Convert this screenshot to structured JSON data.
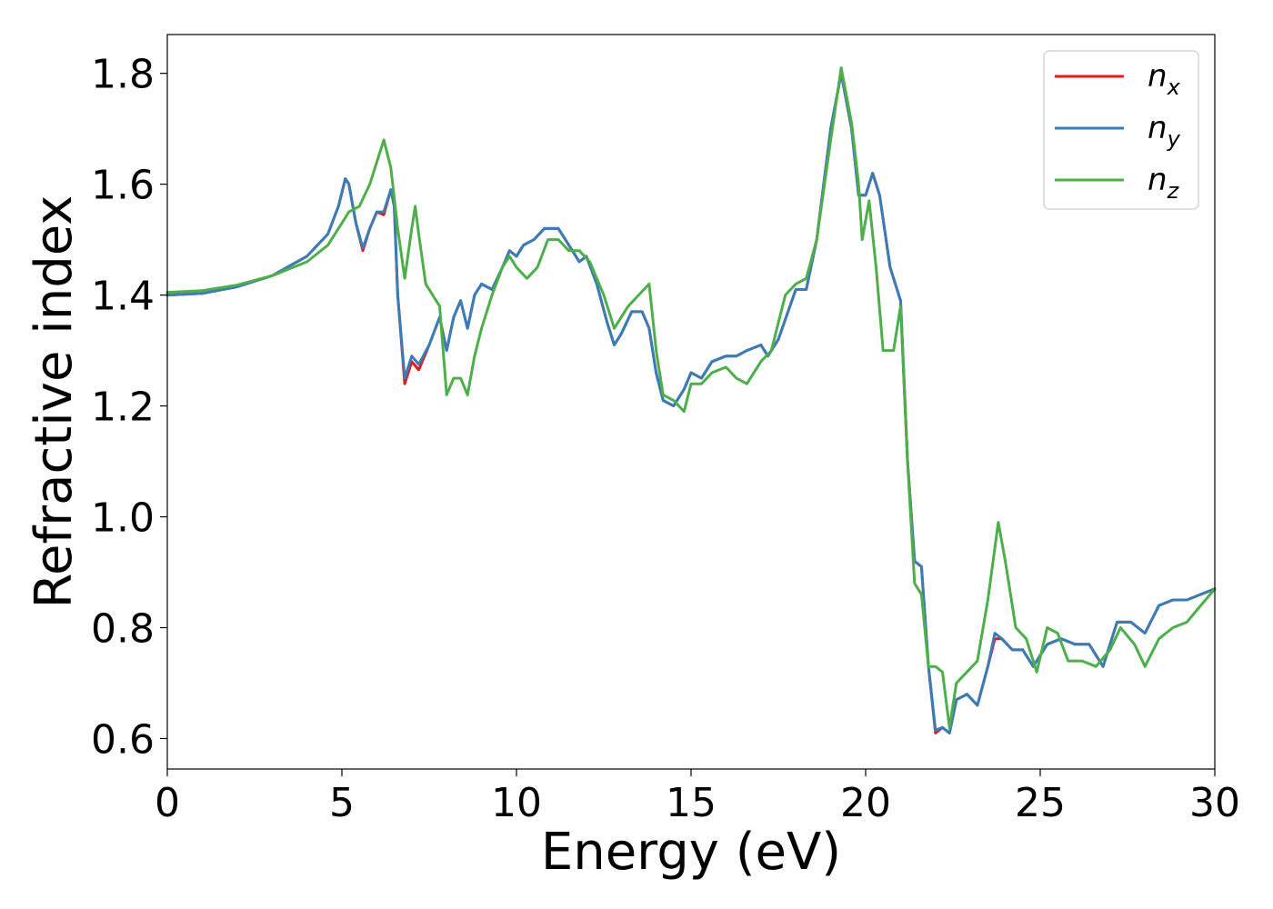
{
  "chart_data": {
    "type": "line",
    "title": "",
    "xlabel": "Energy (eV)",
    "ylabel": "Refractive index",
    "xlim": [
      0,
      30
    ],
    "ylim": [
      0.545,
      1.87
    ],
    "xticks": [
      0,
      5,
      10,
      15,
      20,
      25,
      30
    ],
    "yticks": [
      0.6,
      0.8,
      1.0,
      1.2,
      1.4,
      1.6,
      1.8
    ],
    "xtick_labels": [
      "0",
      "5",
      "10",
      "15",
      "20",
      "25",
      "30"
    ],
    "ytick_labels": [
      "0.6",
      "0.8",
      "1.0",
      "1.2",
      "1.4",
      "1.6",
      "1.8"
    ],
    "grid": false,
    "legend_position": "top-right",
    "series": [
      {
        "name": "n_x",
        "base": "n",
        "sub": "x",
        "color": "#e41a1c",
        "points": [
          [
            0,
            1.4
          ],
          [
            1,
            1.403
          ],
          [
            2,
            1.415
          ],
          [
            3,
            1.435
          ],
          [
            4,
            1.47
          ],
          [
            4.6,
            1.51
          ],
          [
            4.9,
            1.56
          ],
          [
            5.1,
            1.61
          ],
          [
            5.2,
            1.6
          ],
          [
            5.4,
            1.53
          ],
          [
            5.6,
            1.48
          ],
          [
            5.8,
            1.52
          ],
          [
            6.0,
            1.55
          ],
          [
            6.2,
            1.545
          ],
          [
            6.4,
            1.59
          ],
          [
            6.5,
            1.56
          ],
          [
            6.6,
            1.4
          ],
          [
            6.8,
            1.24
          ],
          [
            7.0,
            1.28
          ],
          [
            7.2,
            1.265
          ],
          [
            7.5,
            1.31
          ],
          [
            7.8,
            1.36
          ],
          [
            8.0,
            1.3
          ],
          [
            8.2,
            1.36
          ],
          [
            8.4,
            1.39
          ],
          [
            8.6,
            1.34
          ],
          [
            8.8,
            1.4
          ],
          [
            9.0,
            1.42
          ],
          [
            9.3,
            1.41
          ],
          [
            9.6,
            1.45
          ],
          [
            9.8,
            1.48
          ],
          [
            10.0,
            1.47
          ],
          [
            10.2,
            1.49
          ],
          [
            10.5,
            1.5
          ],
          [
            10.8,
            1.52
          ],
          [
            11.0,
            1.52
          ],
          [
            11.2,
            1.52
          ],
          [
            11.5,
            1.49
          ],
          [
            11.8,
            1.46
          ],
          [
            12.0,
            1.47
          ],
          [
            12.3,
            1.42
          ],
          [
            12.6,
            1.35
          ],
          [
            12.8,
            1.31
          ],
          [
            13.0,
            1.33
          ],
          [
            13.3,
            1.37
          ],
          [
            13.6,
            1.37
          ],
          [
            13.8,
            1.34
          ],
          [
            14.0,
            1.26
          ],
          [
            14.2,
            1.21
          ],
          [
            14.5,
            1.2
          ],
          [
            14.8,
            1.23
          ],
          [
            15.0,
            1.26
          ],
          [
            15.3,
            1.25
          ],
          [
            15.6,
            1.28
          ],
          [
            16.0,
            1.29
          ],
          [
            16.3,
            1.29
          ],
          [
            16.6,
            1.3
          ],
          [
            17.0,
            1.31
          ],
          [
            17.2,
            1.29
          ],
          [
            17.5,
            1.32
          ],
          [
            18.0,
            1.41
          ],
          [
            18.3,
            1.41
          ],
          [
            18.6,
            1.5
          ],
          [
            19.0,
            1.7
          ],
          [
            19.3,
            1.8
          ],
          [
            19.6,
            1.7
          ],
          [
            19.8,
            1.58
          ],
          [
            20.0,
            1.58
          ],
          [
            20.2,
            1.62
          ],
          [
            20.4,
            1.58
          ],
          [
            20.7,
            1.45
          ],
          [
            21.0,
            1.39
          ],
          [
            21.2,
            1.1
          ],
          [
            21.4,
            0.92
          ],
          [
            21.6,
            0.91
          ],
          [
            21.8,
            0.73
          ],
          [
            22.0,
            0.61
          ],
          [
            22.2,
            0.62
          ],
          [
            22.4,
            0.61
          ],
          [
            22.6,
            0.67
          ],
          [
            22.9,
            0.68
          ],
          [
            23.2,
            0.66
          ],
          [
            23.5,
            0.73
          ],
          [
            23.7,
            0.78
          ],
          [
            23.9,
            0.78
          ],
          [
            24.2,
            0.76
          ],
          [
            24.5,
            0.76
          ],
          [
            24.8,
            0.73
          ],
          [
            25.2,
            0.77
          ],
          [
            25.6,
            0.78
          ],
          [
            26.0,
            0.77
          ],
          [
            26.4,
            0.77
          ],
          [
            26.8,
            0.73
          ],
          [
            27.2,
            0.81
          ],
          [
            27.6,
            0.81
          ],
          [
            28.0,
            0.79
          ],
          [
            28.4,
            0.84
          ],
          [
            28.8,
            0.85
          ],
          [
            29.2,
            0.85
          ],
          [
            29.6,
            0.86
          ],
          [
            30,
            0.87
          ]
        ]
      },
      {
        "name": "n_y",
        "base": "n",
        "sub": "y",
        "color": "#377eb8",
        "points": [
          [
            0,
            1.4
          ],
          [
            1,
            1.403
          ],
          [
            2,
            1.415
          ],
          [
            3,
            1.435
          ],
          [
            4,
            1.47
          ],
          [
            4.6,
            1.51
          ],
          [
            4.9,
            1.56
          ],
          [
            5.1,
            1.61
          ],
          [
            5.2,
            1.6
          ],
          [
            5.4,
            1.53
          ],
          [
            5.6,
            1.485
          ],
          [
            5.8,
            1.52
          ],
          [
            6.0,
            1.55
          ],
          [
            6.2,
            1.55
          ],
          [
            6.4,
            1.59
          ],
          [
            6.5,
            1.56
          ],
          [
            6.6,
            1.4
          ],
          [
            6.8,
            1.25
          ],
          [
            7.0,
            1.29
          ],
          [
            7.2,
            1.275
          ],
          [
            7.5,
            1.31
          ],
          [
            7.8,
            1.36
          ],
          [
            8.0,
            1.3
          ],
          [
            8.2,
            1.36
          ],
          [
            8.4,
            1.39
          ],
          [
            8.6,
            1.34
          ],
          [
            8.8,
            1.4
          ],
          [
            9.0,
            1.42
          ],
          [
            9.3,
            1.41
          ],
          [
            9.6,
            1.45
          ],
          [
            9.8,
            1.48
          ],
          [
            10.0,
            1.47
          ],
          [
            10.2,
            1.49
          ],
          [
            10.5,
            1.5
          ],
          [
            10.8,
            1.52
          ],
          [
            11.0,
            1.52
          ],
          [
            11.2,
            1.52
          ],
          [
            11.5,
            1.49
          ],
          [
            11.8,
            1.46
          ],
          [
            12.0,
            1.47
          ],
          [
            12.3,
            1.42
          ],
          [
            12.6,
            1.35
          ],
          [
            12.8,
            1.31
          ],
          [
            13.0,
            1.33
          ],
          [
            13.3,
            1.37
          ],
          [
            13.6,
            1.37
          ],
          [
            13.8,
            1.34
          ],
          [
            14.0,
            1.26
          ],
          [
            14.2,
            1.21
          ],
          [
            14.5,
            1.2
          ],
          [
            14.8,
            1.23
          ],
          [
            15.0,
            1.26
          ],
          [
            15.3,
            1.25
          ],
          [
            15.6,
            1.28
          ],
          [
            16.0,
            1.29
          ],
          [
            16.3,
            1.29
          ],
          [
            16.6,
            1.3
          ],
          [
            17.0,
            1.31
          ],
          [
            17.2,
            1.29
          ],
          [
            17.5,
            1.32
          ],
          [
            18.0,
            1.41
          ],
          [
            18.3,
            1.41
          ],
          [
            18.6,
            1.5
          ],
          [
            19.0,
            1.7
          ],
          [
            19.3,
            1.8
          ],
          [
            19.6,
            1.7
          ],
          [
            19.8,
            1.58
          ],
          [
            20.0,
            1.58
          ],
          [
            20.2,
            1.62
          ],
          [
            20.4,
            1.58
          ],
          [
            20.7,
            1.45
          ],
          [
            21.0,
            1.39
          ],
          [
            21.2,
            1.1
          ],
          [
            21.4,
            0.92
          ],
          [
            21.6,
            0.91
          ],
          [
            21.8,
            0.73
          ],
          [
            22.0,
            0.615
          ],
          [
            22.2,
            0.62
          ],
          [
            22.4,
            0.61
          ],
          [
            22.6,
            0.67
          ],
          [
            22.9,
            0.68
          ],
          [
            23.2,
            0.66
          ],
          [
            23.5,
            0.73
          ],
          [
            23.7,
            0.79
          ],
          [
            23.9,
            0.78
          ],
          [
            24.2,
            0.76
          ],
          [
            24.5,
            0.76
          ],
          [
            24.8,
            0.73
          ],
          [
            25.2,
            0.77
          ],
          [
            25.6,
            0.78
          ],
          [
            26.0,
            0.77
          ],
          [
            26.4,
            0.77
          ],
          [
            26.8,
            0.73
          ],
          [
            27.2,
            0.81
          ],
          [
            27.6,
            0.81
          ],
          [
            28.0,
            0.79
          ],
          [
            28.4,
            0.84
          ],
          [
            28.8,
            0.85
          ],
          [
            29.2,
            0.85
          ],
          [
            29.6,
            0.86
          ],
          [
            30,
            0.87
          ]
        ]
      },
      {
        "name": "n_z",
        "base": "n",
        "sub": "z",
        "color": "#4daf4a",
        "points": [
          [
            0,
            1.405
          ],
          [
            1,
            1.408
          ],
          [
            2,
            1.418
          ],
          [
            3,
            1.435
          ],
          [
            4,
            1.46
          ],
          [
            4.6,
            1.49
          ],
          [
            4.9,
            1.52
          ],
          [
            5.2,
            1.55
          ],
          [
            5.5,
            1.56
          ],
          [
            5.8,
            1.6
          ],
          [
            6.0,
            1.64
          ],
          [
            6.2,
            1.68
          ],
          [
            6.4,
            1.63
          ],
          [
            6.6,
            1.52
          ],
          [
            6.8,
            1.43
          ],
          [
            7.0,
            1.52
          ],
          [
            7.1,
            1.56
          ],
          [
            7.2,
            1.51
          ],
          [
            7.4,
            1.42
          ],
          [
            7.6,
            1.4
          ],
          [
            7.8,
            1.38
          ],
          [
            8.0,
            1.22
          ],
          [
            8.2,
            1.25
          ],
          [
            8.4,
            1.25
          ],
          [
            8.6,
            1.22
          ],
          [
            8.8,
            1.29
          ],
          [
            9.0,
            1.34
          ],
          [
            9.3,
            1.4
          ],
          [
            9.6,
            1.45
          ],
          [
            9.8,
            1.47
          ],
          [
            10.0,
            1.45
          ],
          [
            10.3,
            1.43
          ],
          [
            10.6,
            1.45
          ],
          [
            10.9,
            1.5
          ],
          [
            11.2,
            1.5
          ],
          [
            11.5,
            1.48
          ],
          [
            11.8,
            1.48
          ],
          [
            12.1,
            1.46
          ],
          [
            12.5,
            1.4
          ],
          [
            12.8,
            1.34
          ],
          [
            13.2,
            1.38
          ],
          [
            13.5,
            1.4
          ],
          [
            13.8,
            1.42
          ],
          [
            14.0,
            1.3
          ],
          [
            14.2,
            1.22
          ],
          [
            14.5,
            1.21
          ],
          [
            14.8,
            1.19
          ],
          [
            15.0,
            1.24
          ],
          [
            15.3,
            1.24
          ],
          [
            15.6,
            1.26
          ],
          [
            16.0,
            1.27
          ],
          [
            16.3,
            1.25
          ],
          [
            16.6,
            1.24
          ],
          [
            17.0,
            1.28
          ],
          [
            17.3,
            1.3
          ],
          [
            17.7,
            1.4
          ],
          [
            18.0,
            1.42
          ],
          [
            18.3,
            1.43
          ],
          [
            18.6,
            1.5
          ],
          [
            19.0,
            1.68
          ],
          [
            19.3,
            1.81
          ],
          [
            19.6,
            1.71
          ],
          [
            19.8,
            1.6
          ],
          [
            19.9,
            1.5
          ],
          [
            20.1,
            1.57
          ],
          [
            20.3,
            1.45
          ],
          [
            20.5,
            1.3
          ],
          [
            20.8,
            1.3
          ],
          [
            21.0,
            1.38
          ],
          [
            21.2,
            1.1
          ],
          [
            21.4,
            0.88
          ],
          [
            21.6,
            0.86
          ],
          [
            21.8,
            0.73
          ],
          [
            22.0,
            0.73
          ],
          [
            22.2,
            0.72
          ],
          [
            22.4,
            0.62
          ],
          [
            22.6,
            0.7
          ],
          [
            22.9,
            0.72
          ],
          [
            23.2,
            0.74
          ],
          [
            23.5,
            0.85
          ],
          [
            23.8,
            0.99
          ],
          [
            24.0,
            0.92
          ],
          [
            24.3,
            0.8
          ],
          [
            24.6,
            0.78
          ],
          [
            24.9,
            0.72
          ],
          [
            25.2,
            0.8
          ],
          [
            25.5,
            0.79
          ],
          [
            25.8,
            0.74
          ],
          [
            26.2,
            0.74
          ],
          [
            26.6,
            0.73
          ],
          [
            27.0,
            0.76
          ],
          [
            27.3,
            0.8
          ],
          [
            27.7,
            0.77
          ],
          [
            28.0,
            0.73
          ],
          [
            28.4,
            0.78
          ],
          [
            28.8,
            0.8
          ],
          [
            29.2,
            0.81
          ],
          [
            29.6,
            0.84
          ],
          [
            30,
            0.87
          ]
        ]
      }
    ]
  }
}
